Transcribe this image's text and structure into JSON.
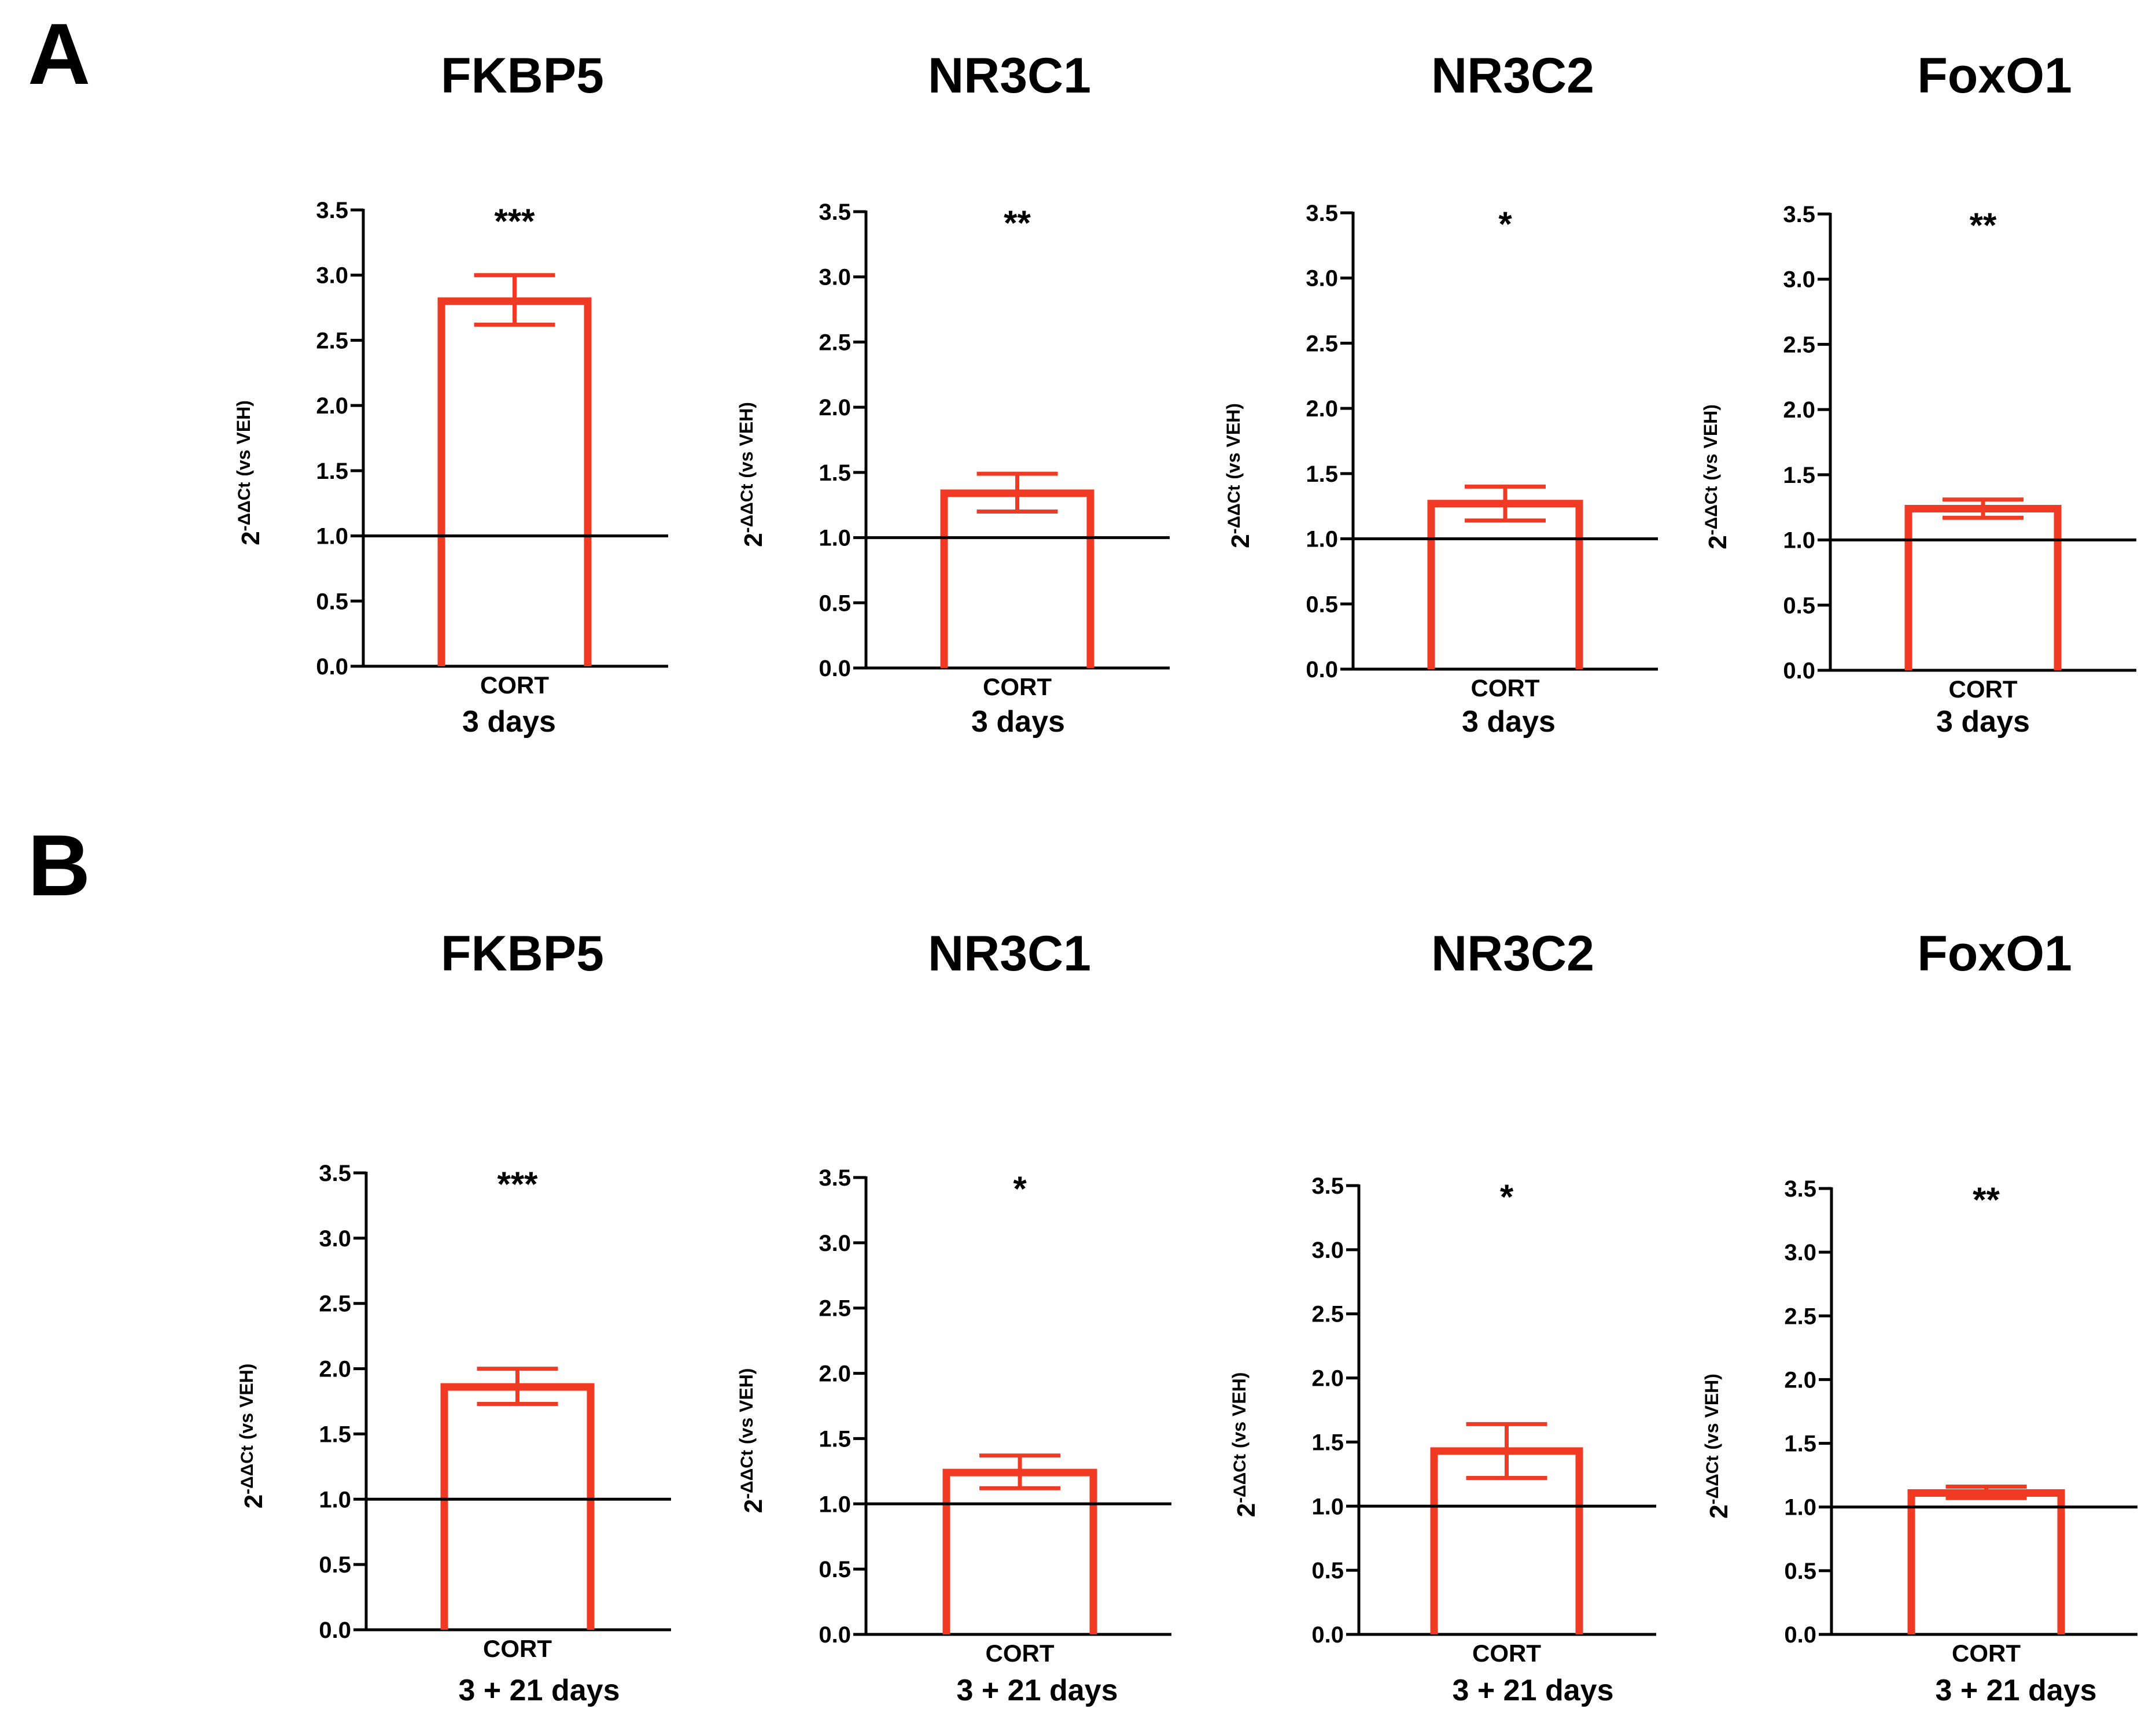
{
  "panel_labels": [
    "A",
    "B"
  ],
  "colors": {
    "bar": "#F03A24",
    "axis": "#000000",
    "text": "#000000"
  },
  "chart_data": [
    {
      "type": "bar",
      "panel": "A",
      "title": "FKBP5",
      "ylabel_main": "2",
      "ylabel_sup": "-ΔΔCt",
      "ylabel_small": "(vs VEH)",
      "categories": [
        "CORT"
      ],
      "values": [
        2.8
      ],
      "err_upper": [
        3.0
      ],
      "err_lower": [
        2.62
      ],
      "significance": "***",
      "xlabel": "3 days",
      "ylim": [
        0,
        3.5
      ],
      "yticks": [
        "0.0",
        "0.5",
        "1.0",
        "1.5",
        "2.0",
        "2.5",
        "3.0",
        "3.5"
      ],
      "baseline": 1.0
    },
    {
      "type": "bar",
      "panel": "A",
      "title": "NR3C1",
      "ylabel_main": "2",
      "ylabel_sup": "-ΔΔCt",
      "ylabel_small": "(vs VEH)",
      "categories": [
        "CORT"
      ],
      "values": [
        1.34
      ],
      "err_upper": [
        1.49
      ],
      "err_lower": [
        1.2
      ],
      "significance": "**",
      "xlabel": "3 days",
      "ylim": [
        0,
        3.5
      ],
      "yticks": [
        "0.0",
        "0.5",
        "1.0",
        "1.5",
        "2.0",
        "2.5",
        "3.0",
        "3.5"
      ],
      "baseline": 1.0
    },
    {
      "type": "bar",
      "panel": "A",
      "title": "NR3C2",
      "ylabel_main": "2",
      "ylabel_sup": "-ΔΔCt",
      "ylabel_small": "(vs VEH)",
      "categories": [
        "CORT"
      ],
      "values": [
        1.27
      ],
      "err_upper": [
        1.4
      ],
      "err_lower": [
        1.14
      ],
      "significance": "*",
      "xlabel": "3 days",
      "ylim": [
        0,
        3.5
      ],
      "yticks": [
        "0.0",
        "0.5",
        "1.0",
        "1.5",
        "2.0",
        "2.5",
        "3.0",
        "3.5"
      ],
      "baseline": 1.0
    },
    {
      "type": "bar",
      "panel": "A",
      "title": "FoxO1",
      "ylabel_main": "2",
      "ylabel_sup": "-ΔΔCt",
      "ylabel_small": "(vs VEH)",
      "categories": [
        "CORT"
      ],
      "values": [
        1.24
      ],
      "err_upper": [
        1.31
      ],
      "err_lower": [
        1.17
      ],
      "significance": "**",
      "xlabel": "3 days",
      "ylim": [
        0,
        3.5
      ],
      "yticks": [
        "0.0",
        "0.5",
        "1.0",
        "1.5",
        "2.0",
        "2.5",
        "3.0",
        "3.5"
      ],
      "baseline": 1.0
    },
    {
      "type": "bar",
      "panel": "B",
      "title": "FKBP5",
      "ylabel_main": "2",
      "ylabel_sup": "-ΔΔCt",
      "ylabel_small": "(vs VEH)",
      "categories": [
        "CORT"
      ],
      "values": [
        1.86
      ],
      "err_upper": [
        2.0
      ],
      "err_lower": [
        1.73
      ],
      "significance": "***",
      "xlabel": "3 + 21 days",
      "ylim": [
        0,
        3.5
      ],
      "yticks": [
        "0.0",
        "0.5",
        "1.0",
        "1.5",
        "2.0",
        "2.5",
        "3.0",
        "3.5"
      ],
      "baseline": 1.0
    },
    {
      "type": "bar",
      "panel": "B",
      "title": "NR3C1",
      "ylabel_main": "2",
      "ylabel_sup": "-ΔΔCt",
      "ylabel_small": "(vs VEH)",
      "categories": [
        "CORT"
      ],
      "values": [
        1.24
      ],
      "err_upper": [
        1.37
      ],
      "err_lower": [
        1.12
      ],
      "significance": "*",
      "xlabel": "3 + 21 days",
      "ylim": [
        0,
        3.5
      ],
      "yticks": [
        "0.0",
        "0.5",
        "1.0",
        "1.5",
        "2.0",
        "2.5",
        "3.0",
        "3.5"
      ],
      "baseline": 1.0
    },
    {
      "type": "bar",
      "panel": "B",
      "title": "NR3C2",
      "ylabel_main": "2",
      "ylabel_sup": "-ΔΔCt",
      "ylabel_small": "(vs VEH)",
      "categories": [
        "CORT"
      ],
      "values": [
        1.43
      ],
      "err_upper": [
        1.64
      ],
      "err_lower": [
        1.22
      ],
      "significance": "*",
      "xlabel": "3 + 21 days",
      "ylim": [
        0,
        3.5
      ],
      "yticks": [
        "0.0",
        "0.5",
        "1.0",
        "1.5",
        "2.0",
        "2.5",
        "3.0",
        "3.5"
      ],
      "baseline": 1.0
    },
    {
      "type": "bar",
      "panel": "B",
      "title": "FoxO1",
      "ylabel_main": "2",
      "ylabel_sup": "-ΔΔCt",
      "ylabel_small": "(vs VEH)",
      "categories": [
        "CORT"
      ],
      "values": [
        1.11
      ],
      "err_upper": [
        1.16
      ],
      "err_lower": [
        1.07
      ],
      "significance": "**",
      "xlabel": "3 + 21 days",
      "ylim": [
        0,
        3.5
      ],
      "yticks": [
        "0.0",
        "0.5",
        "1.0",
        "1.5",
        "2.0",
        "2.5",
        "3.0",
        "3.5"
      ],
      "baseline": 1.0
    }
  ]
}
